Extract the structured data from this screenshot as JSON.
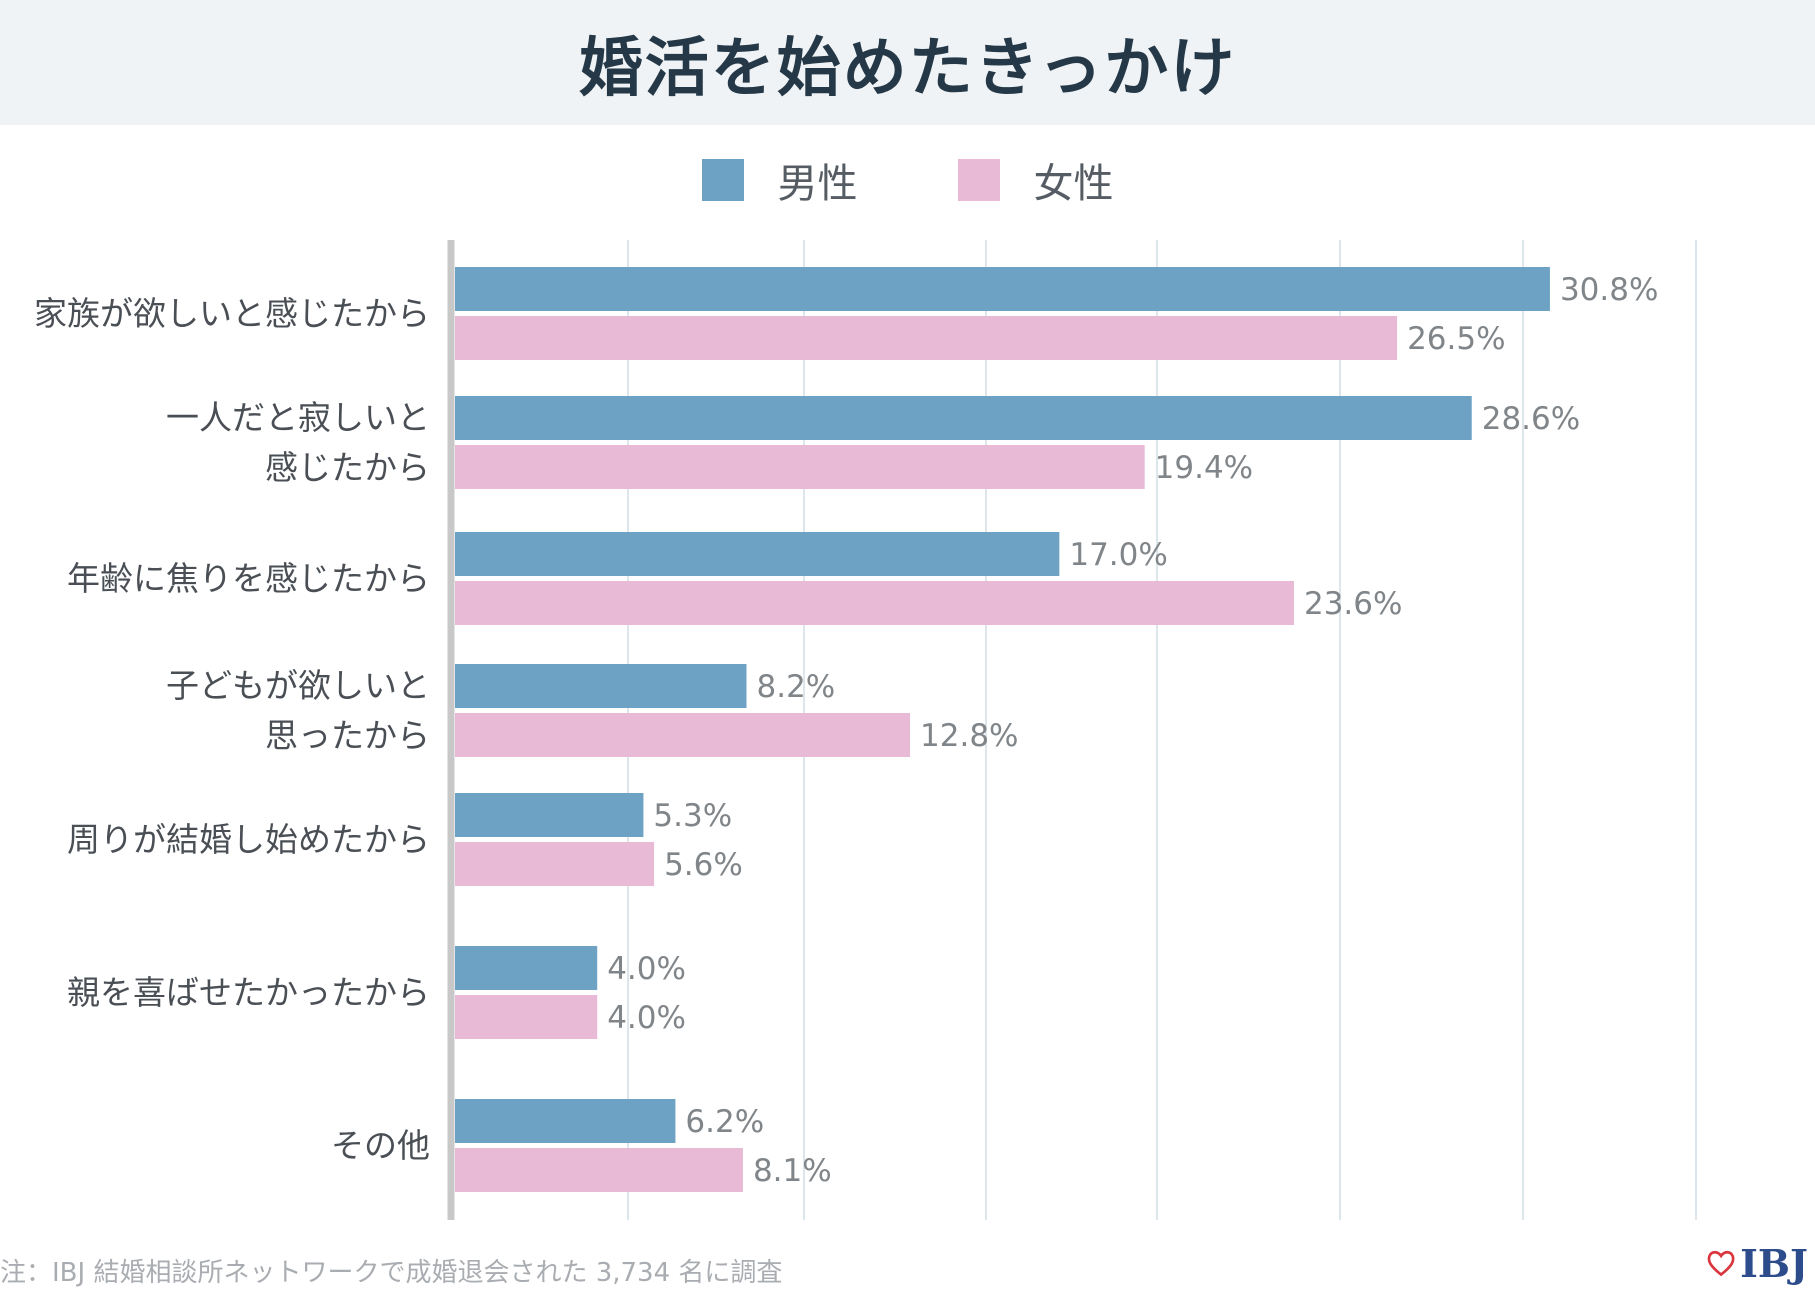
{
  "title": "婚活を始めたきっかけ",
  "footnote": "注：IBJ 結婚相談所ネットワークで成婚退会された 3,734 名に調査",
  "logo_text": "IBJ",
  "colors": {
    "male": "#6da2c4",
    "female": "#e8bad5",
    "grid": "#dde6ea",
    "axis": "#c8c8c8",
    "title_bg": "#eff3f6",
    "logo_heart": "#d9363e"
  },
  "chart_data": {
    "type": "bar",
    "orientation": "horizontal",
    "title": "婚活を始めたきっかけ",
    "categories": [
      [
        "家族が欲しいと感じたから"
      ],
      [
        "一人だと寂しいと",
        "感じたから"
      ],
      [
        "年齢に焦りを感じたから"
      ],
      [
        "子どもが欲しいと",
        "思ったから"
      ],
      [
        "周りが結婚し始めたから"
      ],
      [
        "親を喜ばせたかったから"
      ],
      [
        "その他"
      ]
    ],
    "series": [
      {
        "name": "男性",
        "values": [
          30.8,
          28.6,
          17.0,
          8.2,
          5.3,
          4.0,
          6.2
        ],
        "labels": [
          "30.8%",
          "28.6%",
          "17.0%",
          "8.2%",
          "5.3%",
          "4.0%",
          "6.2%"
        ]
      },
      {
        "name": "女性",
        "values": [
          26.5,
          19.4,
          23.6,
          12.8,
          5.6,
          4.0,
          8.1
        ],
        "labels": [
          "26.5%",
          "19.4%",
          "23.6%",
          "12.8%",
          "5.6%",
          "4.0%",
          "8.1%"
        ]
      }
    ],
    "xlim": [
      0,
      35
    ],
    "grid": true,
    "legend_position": "top-center"
  }
}
